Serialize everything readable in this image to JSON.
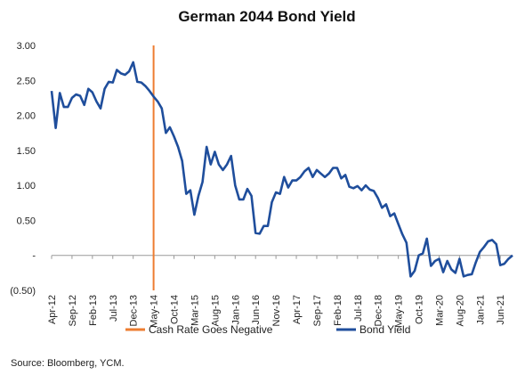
{
  "chart_data": {
    "type": "line",
    "title": "German 2044 Bond Yield",
    "source_note": "Source: Bloomberg, YCM.",
    "ylim": [
      -0.5,
      3.0
    ],
    "y_ticks": [
      3.0,
      2.5,
      2.0,
      1.5,
      1.0,
      0.5,
      0,
      -0.5
    ],
    "y_tick_labels": [
      "3.00",
      "2.50",
      "2.00",
      "1.50",
      "1.00",
      "0.50",
      "-",
      "(0.50)"
    ],
    "x_range": [
      "2012-04",
      "2021-09"
    ],
    "x_tick_labels": [
      "Apr-12",
      "Sep-12",
      "Feb-13",
      "Jul-13",
      "Dec-13",
      "May-14",
      "Oct-14",
      "Mar-15",
      "Aug-15",
      "Jan-16",
      "Jun-16",
      "Nov-16",
      "Apr-17",
      "Sep-17",
      "Feb-18",
      "Jul-18",
      "Dec-18",
      "May-19",
      "Oct-19",
      "Mar-20",
      "Aug-20",
      "Jan-21",
      "Jun-21"
    ],
    "grid": false,
    "legend_placement": "bottom",
    "series": [
      {
        "name": "Bond Yield",
        "color": "#1f4e9c",
        "x": [
          "2012-04",
          "2012-05",
          "2012-06",
          "2012-07",
          "2012-08",
          "2012-09",
          "2012-10",
          "2012-11",
          "2012-12",
          "2013-01",
          "2013-02",
          "2013-03",
          "2013-04",
          "2013-05",
          "2013-06",
          "2013-07",
          "2013-08",
          "2013-09",
          "2013-10",
          "2013-11",
          "2013-12",
          "2014-01",
          "2014-02",
          "2014-03",
          "2014-04",
          "2014-05",
          "2014-06",
          "2014-07",
          "2014-08",
          "2014-09",
          "2014-10",
          "2014-11",
          "2014-12",
          "2015-01",
          "2015-02",
          "2015-03",
          "2015-04",
          "2015-05",
          "2015-06",
          "2015-07",
          "2015-08",
          "2015-09",
          "2015-10",
          "2015-11",
          "2015-12",
          "2016-01",
          "2016-02",
          "2016-03",
          "2016-04",
          "2016-05",
          "2016-06",
          "2016-07",
          "2016-08",
          "2016-09",
          "2016-10",
          "2016-11",
          "2016-12",
          "2017-01",
          "2017-02",
          "2017-03",
          "2017-04",
          "2017-05",
          "2017-06",
          "2017-07",
          "2017-08",
          "2017-09",
          "2017-10",
          "2017-11",
          "2017-12",
          "2018-01",
          "2018-02",
          "2018-03",
          "2018-04",
          "2018-05",
          "2018-06",
          "2018-07",
          "2018-08",
          "2018-09",
          "2018-10",
          "2018-11",
          "2018-12",
          "2019-01",
          "2019-02",
          "2019-03",
          "2019-04",
          "2019-05",
          "2019-06",
          "2019-07",
          "2019-08",
          "2019-09",
          "2019-10",
          "2019-11",
          "2019-12",
          "2020-01",
          "2020-02",
          "2020-03",
          "2020-04",
          "2020-05",
          "2020-06",
          "2020-07",
          "2020-08",
          "2020-09",
          "2020-10",
          "2020-11",
          "2020-12",
          "2021-01",
          "2021-02",
          "2021-03",
          "2021-04",
          "2021-05",
          "2021-06",
          "2021-07",
          "2021-08",
          "2021-09"
        ],
        "values": [
          2.35,
          1.82,
          2.32,
          2.12,
          2.12,
          2.25,
          2.3,
          2.28,
          2.15,
          2.38,
          2.33,
          2.2,
          2.1,
          2.38,
          2.48,
          2.47,
          2.65,
          2.6,
          2.58,
          2.63,
          2.76,
          2.48,
          2.47,
          2.42,
          2.35,
          2.27,
          2.2,
          2.1,
          1.75,
          1.83,
          1.7,
          1.55,
          1.35,
          0.88,
          0.93,
          0.58,
          0.85,
          1.05,
          1.55,
          1.3,
          1.48,
          1.3,
          1.22,
          1.3,
          1.42,
          1.0,
          0.8,
          0.8,
          0.95,
          0.85,
          0.32,
          0.31,
          0.42,
          0.42,
          0.76,
          0.9,
          0.88,
          1.12,
          0.97,
          1.07,
          1.07,
          1.12,
          1.2,
          1.25,
          1.12,
          1.22,
          1.17,
          1.12,
          1.17,
          1.25,
          1.25,
          1.1,
          1.15,
          0.98,
          0.96,
          0.99,
          0.93,
          1.0,
          0.94,
          0.92,
          0.82,
          0.68,
          0.73,
          0.56,
          0.6,
          0.45,
          0.3,
          0.18,
          -0.3,
          -0.22,
          0.0,
          0.03,
          0.24,
          -0.15,
          -0.08,
          -0.05,
          -0.24,
          -0.08,
          -0.2,
          -0.25,
          -0.05,
          -0.3,
          -0.28,
          -0.27,
          -0.1,
          0.05,
          0.12,
          0.2,
          0.22,
          0.16,
          -0.14,
          -0.12,
          -0.05,
          0.0
        ]
      }
    ],
    "annotations": [
      {
        "type": "vertical_line",
        "x": "2014-05",
        "name": "Cash Rate Goes Negative",
        "color": "#ed7d31"
      }
    ]
  }
}
